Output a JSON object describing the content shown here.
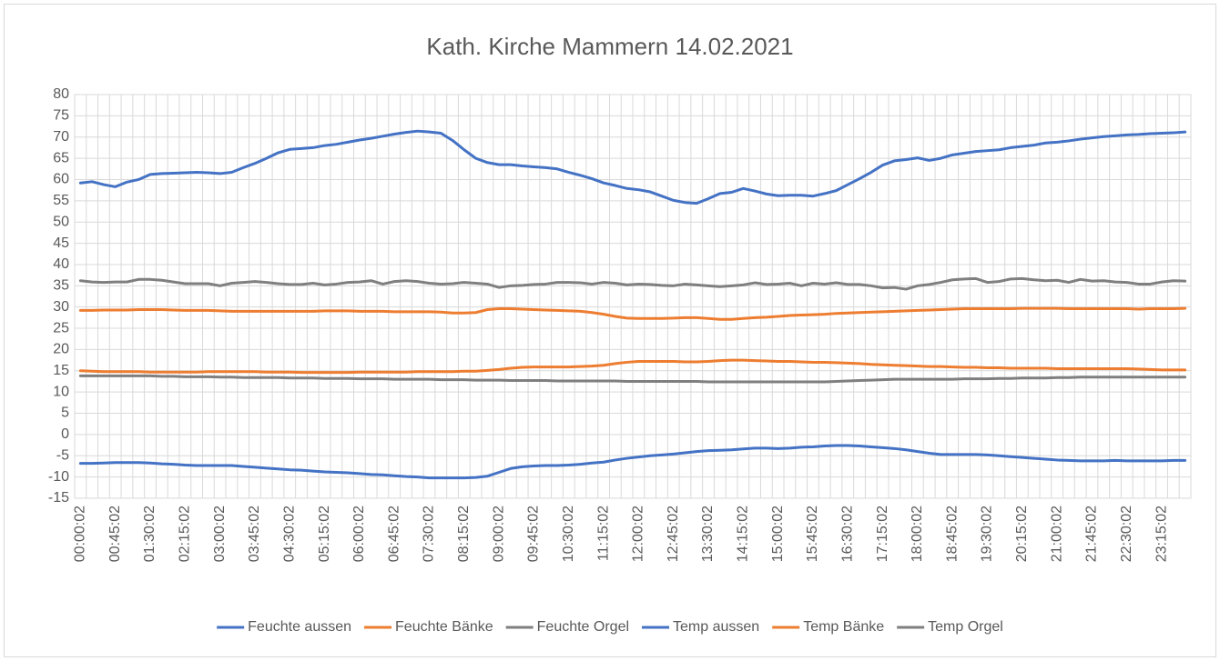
{
  "chart_data": {
    "type": "line",
    "title": "Kath. Kirche Mammern 14.02.2021",
    "categories": [
      "00:00:02",
      null,
      null,
      "00:45:02",
      null,
      null,
      "01:30:02",
      null,
      null,
      "02:15:02",
      null,
      null,
      "03:00:02",
      null,
      null,
      "03:45:02",
      null,
      null,
      "04:30:02",
      null,
      null,
      "05:15:02",
      null,
      null,
      "06:00:02",
      null,
      null,
      "06:45:02",
      null,
      null,
      "07:30:02",
      null,
      null,
      "08:15:02",
      null,
      null,
      "09:00:02",
      null,
      null,
      "09:45:02",
      null,
      null,
      "10:30:02",
      null,
      null,
      "11:15:02",
      null,
      null,
      "12:00:02",
      null,
      null,
      "12:45:02",
      null,
      null,
      "13:30:02",
      null,
      null,
      "14:15:02",
      null,
      null,
      "15:00:02",
      null,
      null,
      "15:45:02",
      null,
      null,
      "16:30:02",
      null,
      null,
      "17:15:02",
      null,
      null,
      "18:00:02",
      null,
      null,
      "18:45:02",
      null,
      null,
      "19:30:02",
      null,
      null,
      "20:15:02",
      null,
      null,
      "21:00:02",
      null,
      null,
      "21:45:02",
      null,
      null,
      "22:30:02",
      null,
      null,
      "23:15:02",
      null,
      null
    ],
    "series": [
      {
        "name": "Feuchte aussen",
        "color": "#4472c4",
        "values": [
          59.2,
          59.5,
          58.8,
          58.3,
          59.4,
          60.0,
          61.2,
          61.4,
          61.5,
          61.6,
          61.7,
          61.6,
          61.4,
          61.7,
          62.8,
          63.8,
          65.0,
          66.3,
          67.1,
          67.3,
          67.5,
          68.0,
          68.3,
          68.8,
          69.3,
          69.7,
          70.2,
          70.7,
          71.1,
          71.4,
          71.2,
          70.9,
          69.2,
          67.0,
          65.0,
          64.0,
          63.5,
          63.5,
          63.2,
          63.0,
          62.8,
          62.5,
          61.7,
          61.0,
          60.2,
          59.2,
          58.6,
          57.9,
          57.6,
          57.1,
          56.1,
          55.1,
          54.6,
          54.4,
          55.5,
          56.7,
          57.0,
          57.9,
          57.3,
          56.6,
          56.2,
          56.3,
          56.3,
          56.1,
          56.7,
          57.4,
          58.8,
          60.2,
          61.7,
          63.4,
          64.4,
          64.7,
          65.1,
          64.5,
          65.0,
          65.8,
          66.2,
          66.6,
          66.8,
          67.0,
          67.5,
          67.8,
          68.1,
          68.6,
          68.8,
          69.1,
          69.5,
          69.8,
          70.1,
          70.3,
          70.5,
          70.6,
          70.8,
          70.9,
          71.0,
          71.2
        ]
      },
      {
        "name": "Feuchte Bänke",
        "color": "#ed7d31",
        "values": [
          29.2,
          29.2,
          29.3,
          29.3,
          29.3,
          29.4,
          29.4,
          29.4,
          29.3,
          29.2,
          29.2,
          29.2,
          29.1,
          29.0,
          29.0,
          29.0,
          29.0,
          29.0,
          29.0,
          29.0,
          29.0,
          29.1,
          29.1,
          29.1,
          29.0,
          29.0,
          29.0,
          28.9,
          28.9,
          28.9,
          28.9,
          28.8,
          28.6,
          28.6,
          28.7,
          29.4,
          29.6,
          29.6,
          29.5,
          29.4,
          29.3,
          29.2,
          29.1,
          29.0,
          28.7,
          28.3,
          27.8,
          27.4,
          27.3,
          27.3,
          27.3,
          27.4,
          27.5,
          27.5,
          27.3,
          27.1,
          27.1,
          27.3,
          27.5,
          27.6,
          27.8,
          28.0,
          28.1,
          28.2,
          28.3,
          28.5,
          28.6,
          28.7,
          28.8,
          28.9,
          29.0,
          29.1,
          29.2,
          29.3,
          29.4,
          29.5,
          29.6,
          29.6,
          29.6,
          29.6,
          29.6,
          29.7,
          29.7,
          29.7,
          29.7,
          29.6,
          29.6,
          29.6,
          29.6,
          29.6,
          29.6,
          29.5,
          29.6,
          29.6,
          29.6,
          29.7
        ]
      },
      {
        "name": "Feuchte Orgel",
        "color": "#7f7f7f",
        "values": [
          36.2,
          35.9,
          35.8,
          35.9,
          35.9,
          36.5,
          36.5,
          36.3,
          35.9,
          35.5,
          35.5,
          35.5,
          35.0,
          35.6,
          35.8,
          36.0,
          35.8,
          35.5,
          35.3,
          35.3,
          35.6,
          35.2,
          35.4,
          35.8,
          35.9,
          36.2,
          35.4,
          36.0,
          36.2,
          36.0,
          35.6,
          35.4,
          35.5,
          35.8,
          35.6,
          35.4,
          34.6,
          35.0,
          35.1,
          35.3,
          35.4,
          35.8,
          35.8,
          35.7,
          35.4,
          35.8,
          35.6,
          35.2,
          35.4,
          35.3,
          35.1,
          35.0,
          35.4,
          35.2,
          35.0,
          34.8,
          35.0,
          35.2,
          35.7,
          35.3,
          35.4,
          35.6,
          35.0,
          35.6,
          35.4,
          35.7,
          35.3,
          35.3,
          35.0,
          34.5,
          34.6,
          34.2,
          35.0,
          35.3,
          35.8,
          36.4,
          36.6,
          36.7,
          35.8,
          36.0,
          36.6,
          36.7,
          36.4,
          36.2,
          36.3,
          35.8,
          36.5,
          36.1,
          36.2,
          35.9,
          35.8,
          35.4,
          35.4,
          35.9,
          36.2,
          36.1
        ]
      },
      {
        "name": "Temp aussen",
        "color": "#4472c4",
        "values": [
          -6.8,
          -6.8,
          -6.7,
          -6.6,
          -6.6,
          -6.6,
          -6.7,
          -6.9,
          -7.0,
          -7.2,
          -7.3,
          -7.3,
          -7.3,
          -7.3,
          -7.5,
          -7.7,
          -7.9,
          -8.1,
          -8.3,
          -8.4,
          -8.6,
          -8.8,
          -8.9,
          -9.0,
          -9.2,
          -9.4,
          -9.5,
          -9.7,
          -9.9,
          -10.0,
          -10.2,
          -10.2,
          -10.2,
          -10.2,
          -10.1,
          -9.8,
          -8.9,
          -8.0,
          -7.6,
          -7.4,
          -7.3,
          -7.3,
          -7.2,
          -7.0,
          -6.7,
          -6.5,
          -6.0,
          -5.6,
          -5.3,
          -5.0,
          -4.8,
          -4.6,
          -4.3,
          -4.0,
          -3.8,
          -3.7,
          -3.6,
          -3.4,
          -3.2,
          -3.2,
          -3.3,
          -3.2,
          -3.0,
          -2.9,
          -2.7,
          -2.6,
          -2.6,
          -2.7,
          -2.9,
          -3.1,
          -3.3,
          -3.6,
          -4.0,
          -4.4,
          -4.7,
          -4.7,
          -4.7,
          -4.7,
          -4.8,
          -5.0,
          -5.2,
          -5.4,
          -5.6,
          -5.8,
          -6.0,
          -6.1,
          -6.2,
          -6.2,
          -6.2,
          -6.1,
          -6.2,
          -6.2,
          -6.2,
          -6.2,
          -6.1,
          -6.1
        ]
      },
      {
        "name": "Temp Bänke",
        "color": "#ed7d31",
        "values": [
          15.0,
          14.9,
          14.8,
          14.8,
          14.8,
          14.8,
          14.7,
          14.7,
          14.7,
          14.7,
          14.7,
          14.8,
          14.8,
          14.8,
          14.8,
          14.8,
          14.7,
          14.7,
          14.7,
          14.6,
          14.6,
          14.6,
          14.6,
          14.6,
          14.7,
          14.7,
          14.7,
          14.7,
          14.7,
          14.8,
          14.8,
          14.8,
          14.8,
          14.9,
          14.9,
          15.1,
          15.3,
          15.6,
          15.8,
          15.9,
          15.9,
          15.9,
          15.9,
          16.0,
          16.1,
          16.3,
          16.7,
          17.0,
          17.2,
          17.2,
          17.2,
          17.2,
          17.1,
          17.1,
          17.2,
          17.4,
          17.5,
          17.5,
          17.4,
          17.3,
          17.2,
          17.2,
          17.1,
          17.0,
          17.0,
          16.9,
          16.8,
          16.7,
          16.5,
          16.4,
          16.3,
          16.2,
          16.1,
          16.0,
          16.0,
          15.9,
          15.8,
          15.8,
          15.7,
          15.7,
          15.6,
          15.6,
          15.6,
          15.6,
          15.5,
          15.5,
          15.5,
          15.5,
          15.5,
          15.5,
          15.5,
          15.4,
          15.3,
          15.2,
          15.2,
          15.2
        ]
      },
      {
        "name": "Temp Orgel",
        "color": "#7f7f7f",
        "values": [
          13.8,
          13.8,
          13.8,
          13.8,
          13.8,
          13.8,
          13.8,
          13.7,
          13.7,
          13.6,
          13.6,
          13.6,
          13.5,
          13.5,
          13.4,
          13.4,
          13.4,
          13.4,
          13.3,
          13.3,
          13.3,
          13.2,
          13.2,
          13.2,
          13.1,
          13.1,
          13.1,
          13.0,
          13.0,
          13.0,
          13.0,
          12.9,
          12.9,
          12.9,
          12.8,
          12.8,
          12.8,
          12.7,
          12.7,
          12.7,
          12.7,
          12.6,
          12.6,
          12.6,
          12.6,
          12.6,
          12.6,
          12.5,
          12.5,
          12.5,
          12.5,
          12.5,
          12.5,
          12.5,
          12.4,
          12.4,
          12.4,
          12.4,
          12.4,
          12.4,
          12.4,
          12.4,
          12.4,
          12.4,
          12.4,
          12.5,
          12.6,
          12.7,
          12.8,
          12.9,
          13.0,
          13.0,
          13.0,
          13.0,
          13.0,
          13.0,
          13.1,
          13.1,
          13.1,
          13.2,
          13.2,
          13.3,
          13.3,
          13.3,
          13.4,
          13.4,
          13.5,
          13.5,
          13.5,
          13.5,
          13.5,
          13.5,
          13.5,
          13.5,
          13.5,
          13.5
        ]
      }
    ],
    "ylim": [
      -15,
      80
    ],
    "yticks": [
      -15,
      -10,
      -5,
      0,
      5,
      10,
      15,
      20,
      25,
      30,
      35,
      40,
      45,
      50,
      55,
      60,
      65,
      70,
      75,
      80
    ],
    "grid": true,
    "legend": "bottom"
  }
}
